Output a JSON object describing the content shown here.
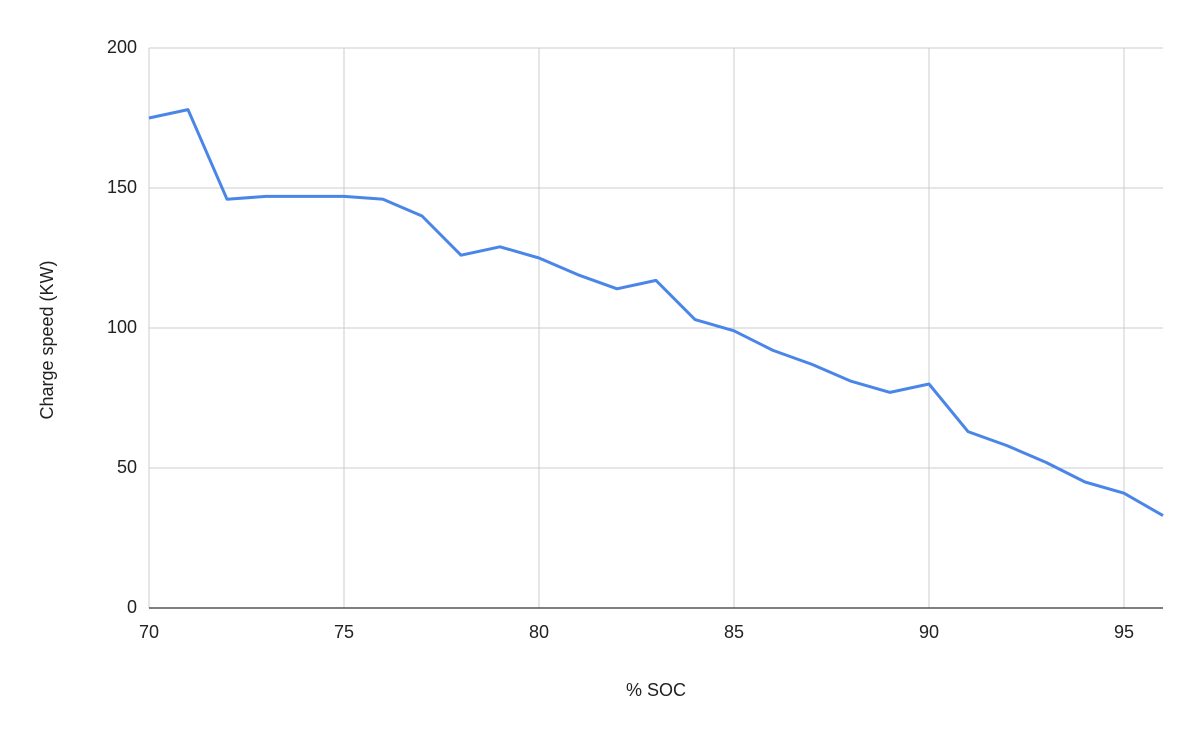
{
  "chart_data": {
    "type": "line",
    "x_label": "% SOC",
    "y_label": "Charge speed (KW)",
    "x": [
      70,
      71,
      72,
      73,
      74,
      75,
      76,
      77,
      78,
      79,
      80,
      81,
      82,
      83,
      84,
      85,
      86,
      87,
      88,
      89,
      90,
      91,
      92,
      93,
      94,
      95,
      96
    ],
    "series": [
      {
        "name": "Charge speed (KW)",
        "color": "#4a86e8",
        "values": [
          175,
          178,
          146,
          147,
          147,
          147,
          146,
          140,
          126,
          129,
          125,
          119,
          114,
          117,
          103,
          99,
          92,
          87,
          81,
          77,
          80,
          63,
          58,
          52,
          45,
          41,
          33
        ]
      }
    ],
    "xlim": [
      70,
      96
    ],
    "xticks": [
      70,
      75,
      80,
      85,
      90,
      95
    ],
    "ylim": [
      0,
      200
    ],
    "yticks": [
      0,
      50,
      100,
      150,
      200
    ],
    "grid": true
  }
}
